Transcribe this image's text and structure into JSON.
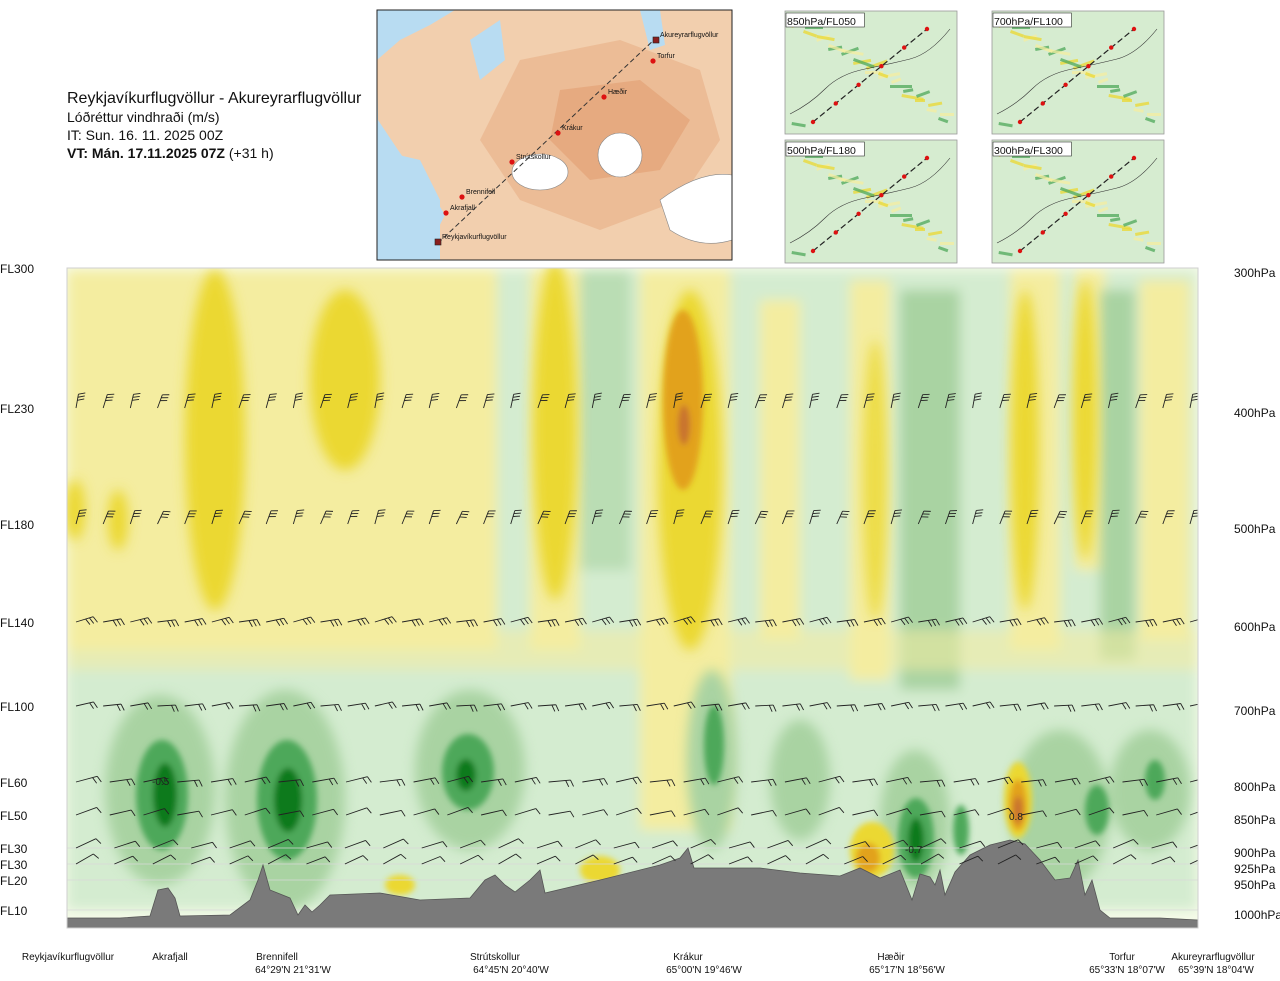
{
  "header": {
    "route": "Reykjavíkurflugvöllur - Akureyrarflugvöllur",
    "variable": "Lóðréttur vindhraði (m/s)",
    "issue_time": "IT: Sun. 16. 11. 2025 00Z",
    "valid_time": "VT: Mán. 17.11.2025 07Z",
    "lead": " (+31 h)"
  },
  "route_map": {
    "points": [
      "Akureyrarflugvöllur",
      "Torfur",
      "Hæðir",
      "Krákur",
      "Strútskollur",
      "Brennifell",
      "Akrafjall",
      "Reykjavíkurflugvöllur"
    ]
  },
  "panels": [
    {
      "label": "850hPa/FL050"
    },
    {
      "label": "700hPa/FL100"
    },
    {
      "label": "500hPa/FL180"
    },
    {
      "label": "300hPa/FL300"
    }
  ],
  "chart_data": {
    "type": "heatmap",
    "title": "Lóðréttur vindhraði (m/s)",
    "levels": [
      {
        "fl": "FL300",
        "hpa": "300hPa"
      },
      {
        "fl": "FL230",
        "hpa": "400hPa"
      },
      {
        "fl": "FL180",
        "hpa": "500hPa"
      },
      {
        "fl": "FL140",
        "hpa": "600hPa"
      },
      {
        "fl": "FL100",
        "hpa": "700hPa"
      },
      {
        "fl": "FL60",
        "hpa": "800hPa"
      },
      {
        "fl": "FL50",
        "hpa": "850hPa"
      },
      {
        "fl": "FL30",
        "hpa": "900hPa"
      },
      {
        "fl": "FL30",
        "hpa": "925hPa"
      },
      {
        "fl": "FL20",
        "hpa": "950hPa"
      },
      {
        "fl": "FL10",
        "hpa": "1000hPa"
      }
    ],
    "waypoints": [
      {
        "name": "Reykjavíkurflugvöllur",
        "coord": ""
      },
      {
        "name": "Akrafjall",
        "coord": ""
      },
      {
        "name": "Brennifell",
        "coord": "64°29'N 21°31'W"
      },
      {
        "name": "Strútskollur",
        "coord": "64°45'N 20°40'W"
      },
      {
        "name": "Krákur",
        "coord": "65°00'N 19°46'W"
      },
      {
        "name": "Hæðir",
        "coord": "65°17'N 18°56'W"
      },
      {
        "name": "Torfur",
        "coord": "65°33'N 18°07'W"
      },
      {
        "name": "Akureyrarflugvöllur",
        "coord": "65°39'N 18°04'W"
      }
    ],
    "annotations": [
      "-0.5",
      "-0.7",
      "0.8"
    ],
    "colors": {
      "strong_down": "#0a7a1e",
      "moderate_down": "#4ea85a",
      "weak_down": "#a9d3a2",
      "very_weak_down": "#d4ecd0",
      "neutral": "#f6fbe9",
      "weak_up": "#f4eda0",
      "moderate_up": "#ebd830",
      "strong_up": "#e2a21c",
      "very_strong_up": "#c9732e",
      "terrain": "#7a7a7a"
    }
  }
}
